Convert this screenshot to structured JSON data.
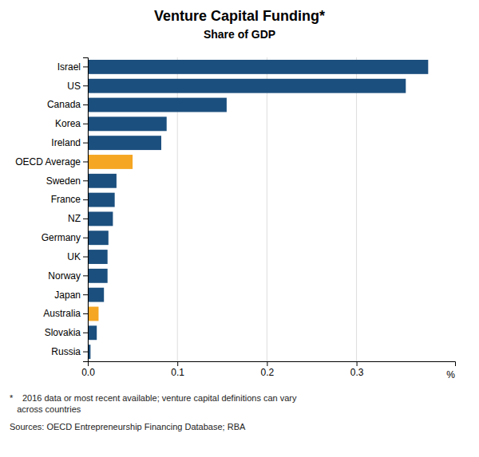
{
  "chart_data": {
    "type": "bar",
    "orientation": "horizontal",
    "title": "Venture Capital Funding*",
    "subtitle": "Share of GDP",
    "categories": [
      "Israel",
      "US",
      "Canada",
      "Korea",
      "Ireland",
      "OECD Average",
      "Sweden",
      "France",
      "NZ",
      "Germany",
      "UK",
      "Norway",
      "Japan",
      "Australia",
      "Slovakia",
      "Russia"
    ],
    "values": [
      0.38,
      0.355,
      0.155,
      0.088,
      0.082,
      0.05,
      0.032,
      0.03,
      0.028,
      0.023,
      0.022,
      0.022,
      0.018,
      0.012,
      0.01,
      0.003
    ],
    "colors": [
      "#1b4f7e",
      "#1b4f7e",
      "#1b4f7e",
      "#1b4f7e",
      "#1b4f7e",
      "#f5a623",
      "#1b4f7e",
      "#1b4f7e",
      "#1b4f7e",
      "#1b4f7e",
      "#1b4f7e",
      "#1b4f7e",
      "#1b4f7e",
      "#f5a623",
      "#1b4f7e",
      "#1b4f7e"
    ],
    "xlim": [
      0,
      0.41
    ],
    "xticks": [
      {
        "value": 0.0,
        "label": "0.0"
      },
      0.1,
      0.2,
      0.3
    ],
    "xlabel": "%",
    "grid": true,
    "annotations": [
      "*   2016 data or most recent available; venture capital definitions can vary\n   across countries",
      "Sources: OECD Entrepreneurship Financing Database; RBA"
    ]
  }
}
